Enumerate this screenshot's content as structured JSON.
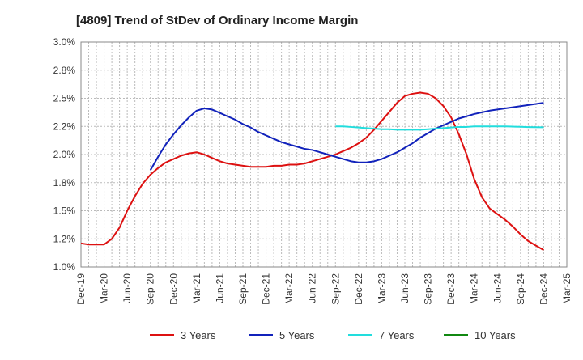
{
  "chart_data": {
    "type": "line",
    "title": "[4809]  Trend of StDev of Ordinary Income Margin",
    "xlabel": "",
    "ylabel": "",
    "grid": true,
    "legend_position": "bottom",
    "x_ticks": [
      "Dec-19",
      "Mar-20",
      "Jun-20",
      "Sep-20",
      "Dec-20",
      "Mar-21",
      "Jun-21",
      "Sep-21",
      "Dec-21",
      "Mar-22",
      "Jun-22",
      "Sep-22",
      "Dec-22",
      "Mar-23",
      "Jun-23",
      "Sep-23",
      "Dec-23",
      "Mar-24",
      "Jun-24",
      "Sep-24",
      "Dec-24",
      "Mar-25"
    ],
    "y_ticks": [
      "1.0%",
      "1.2%",
      "1.5%",
      "1.8%",
      "2.0%",
      "2.2%",
      "2.5%",
      "2.8%",
      "3.0%"
    ],
    "ylim": [
      1.0,
      3.0
    ],
    "y_unit": "%",
    "series": [
      {
        "name": "3 Years",
        "color": "#dd1111",
        "points": [
          [
            "2019-12",
            1.21
          ],
          [
            "2020-01",
            1.2
          ],
          [
            "2020-02",
            1.2
          ],
          [
            "2020-03",
            1.2
          ],
          [
            "2020-04",
            1.25
          ],
          [
            "2020-05",
            1.35
          ],
          [
            "2020-06",
            1.5
          ],
          [
            "2020-07",
            1.63
          ],
          [
            "2020-08",
            1.74
          ],
          [
            "2020-09",
            1.82
          ],
          [
            "2020-10",
            1.88
          ],
          [
            "2020-11",
            1.93
          ],
          [
            "2020-12",
            1.96
          ],
          [
            "2021-01",
            1.99
          ],
          [
            "2021-02",
            2.01
          ],
          [
            "2021-03",
            2.02
          ],
          [
            "2021-04",
            2.0
          ],
          [
            "2021-05",
            1.97
          ],
          [
            "2021-06",
            1.94
          ],
          [
            "2021-07",
            1.92
          ],
          [
            "2021-08",
            1.91
          ],
          [
            "2021-09",
            1.9
          ],
          [
            "2021-10",
            1.89
          ],
          [
            "2021-11",
            1.89
          ],
          [
            "2021-12",
            1.89
          ],
          [
            "2022-01",
            1.9
          ],
          [
            "2022-02",
            1.9
          ],
          [
            "2022-03",
            1.91
          ],
          [
            "2022-04",
            1.91
          ],
          [
            "2022-05",
            1.92
          ],
          [
            "2022-06",
            1.94
          ],
          [
            "2022-07",
            1.96
          ],
          [
            "2022-08",
            1.98
          ],
          [
            "2022-09",
            2.0
          ],
          [
            "2022-10",
            2.03
          ],
          [
            "2022-11",
            2.06
          ],
          [
            "2022-12",
            2.1
          ],
          [
            "2023-01",
            2.15
          ],
          [
            "2023-02",
            2.22
          ],
          [
            "2023-03",
            2.3
          ],
          [
            "2023-04",
            2.38
          ],
          [
            "2023-05",
            2.46
          ],
          [
            "2023-06",
            2.52
          ],
          [
            "2023-07",
            2.54
          ],
          [
            "2023-08",
            2.55
          ],
          [
            "2023-09",
            2.54
          ],
          [
            "2023-10",
            2.5
          ],
          [
            "2023-11",
            2.43
          ],
          [
            "2023-12",
            2.33
          ],
          [
            "2024-01",
            2.18
          ],
          [
            "2024-02",
            2.0
          ],
          [
            "2024-03",
            1.78
          ],
          [
            "2024-04",
            1.62
          ],
          [
            "2024-05",
            1.52
          ],
          [
            "2024-06",
            1.47
          ],
          [
            "2024-07",
            1.42
          ],
          [
            "2024-08",
            1.36
          ],
          [
            "2024-09",
            1.29
          ],
          [
            "2024-10",
            1.23
          ],
          [
            "2024-11",
            1.19
          ],
          [
            "2024-12",
            1.15
          ]
        ]
      },
      {
        "name": "5 Years",
        "color": "#1122bb",
        "points": [
          [
            "2020-09",
            1.86
          ],
          [
            "2020-10",
            1.98
          ],
          [
            "2020-11",
            2.09
          ],
          [
            "2020-12",
            2.18
          ],
          [
            "2021-01",
            2.26
          ],
          [
            "2021-02",
            2.33
          ],
          [
            "2021-03",
            2.39
          ],
          [
            "2021-04",
            2.41
          ],
          [
            "2021-05",
            2.4
          ],
          [
            "2021-06",
            2.37
          ],
          [
            "2021-07",
            2.34
          ],
          [
            "2021-08",
            2.31
          ],
          [
            "2021-09",
            2.27
          ],
          [
            "2021-10",
            2.24
          ],
          [
            "2021-11",
            2.2
          ],
          [
            "2021-12",
            2.17
          ],
          [
            "2022-01",
            2.14
          ],
          [
            "2022-02",
            2.11
          ],
          [
            "2022-03",
            2.09
          ],
          [
            "2022-04",
            2.07
          ],
          [
            "2022-05",
            2.05
          ],
          [
            "2022-06",
            2.04
          ],
          [
            "2022-07",
            2.02
          ],
          [
            "2022-08",
            2.0
          ],
          [
            "2022-09",
            1.98
          ],
          [
            "2022-10",
            1.96
          ],
          [
            "2022-11",
            1.94
          ],
          [
            "2022-12",
            1.93
          ],
          [
            "2023-01",
            1.93
          ],
          [
            "2023-02",
            1.94
          ],
          [
            "2023-03",
            1.96
          ],
          [
            "2023-04",
            1.99
          ],
          [
            "2023-05",
            2.02
          ],
          [
            "2023-06",
            2.06
          ],
          [
            "2023-07",
            2.1
          ],
          [
            "2023-08",
            2.15
          ],
          [
            "2023-09",
            2.19
          ],
          [
            "2023-10",
            2.23
          ],
          [
            "2023-11",
            2.26
          ],
          [
            "2023-12",
            2.29
          ],
          [
            "2024-01",
            2.32
          ],
          [
            "2024-02",
            2.34
          ],
          [
            "2024-03",
            2.36
          ],
          [
            "2024-04",
            2.375
          ],
          [
            "2024-05",
            2.39
          ],
          [
            "2024-06",
            2.4
          ],
          [
            "2024-07",
            2.41
          ],
          [
            "2024-08",
            2.42
          ],
          [
            "2024-09",
            2.43
          ],
          [
            "2024-10",
            2.44
          ],
          [
            "2024-11",
            2.45
          ],
          [
            "2024-12",
            2.46
          ]
        ]
      },
      {
        "name": "7 Years",
        "color": "#22dddd",
        "points": [
          [
            "2022-09",
            2.25
          ],
          [
            "2022-10",
            2.25
          ],
          [
            "2022-11",
            2.245
          ],
          [
            "2022-12",
            2.24
          ],
          [
            "2023-01",
            2.235
          ],
          [
            "2023-02",
            2.23
          ],
          [
            "2023-03",
            2.225
          ],
          [
            "2023-04",
            2.225
          ],
          [
            "2023-05",
            2.22
          ],
          [
            "2023-06",
            2.22
          ],
          [
            "2023-07",
            2.22
          ],
          [
            "2023-08",
            2.22
          ],
          [
            "2023-09",
            2.225
          ],
          [
            "2023-10",
            2.23
          ],
          [
            "2023-11",
            2.235
          ],
          [
            "2023-12",
            2.24
          ],
          [
            "2024-01",
            2.245
          ],
          [
            "2024-02",
            2.245
          ],
          [
            "2024-03",
            2.25
          ],
          [
            "2024-04",
            2.25
          ],
          [
            "2024-05",
            2.25
          ],
          [
            "2024-06",
            2.25
          ],
          [
            "2024-07",
            2.25
          ],
          [
            "2024-08",
            2.248
          ],
          [
            "2024-09",
            2.246
          ],
          [
            "2024-10",
            2.244
          ],
          [
            "2024-11",
            2.243
          ],
          [
            "2024-12",
            2.242
          ]
        ]
      },
      {
        "name": "10 Years",
        "color": "#118811",
        "points": []
      }
    ]
  }
}
